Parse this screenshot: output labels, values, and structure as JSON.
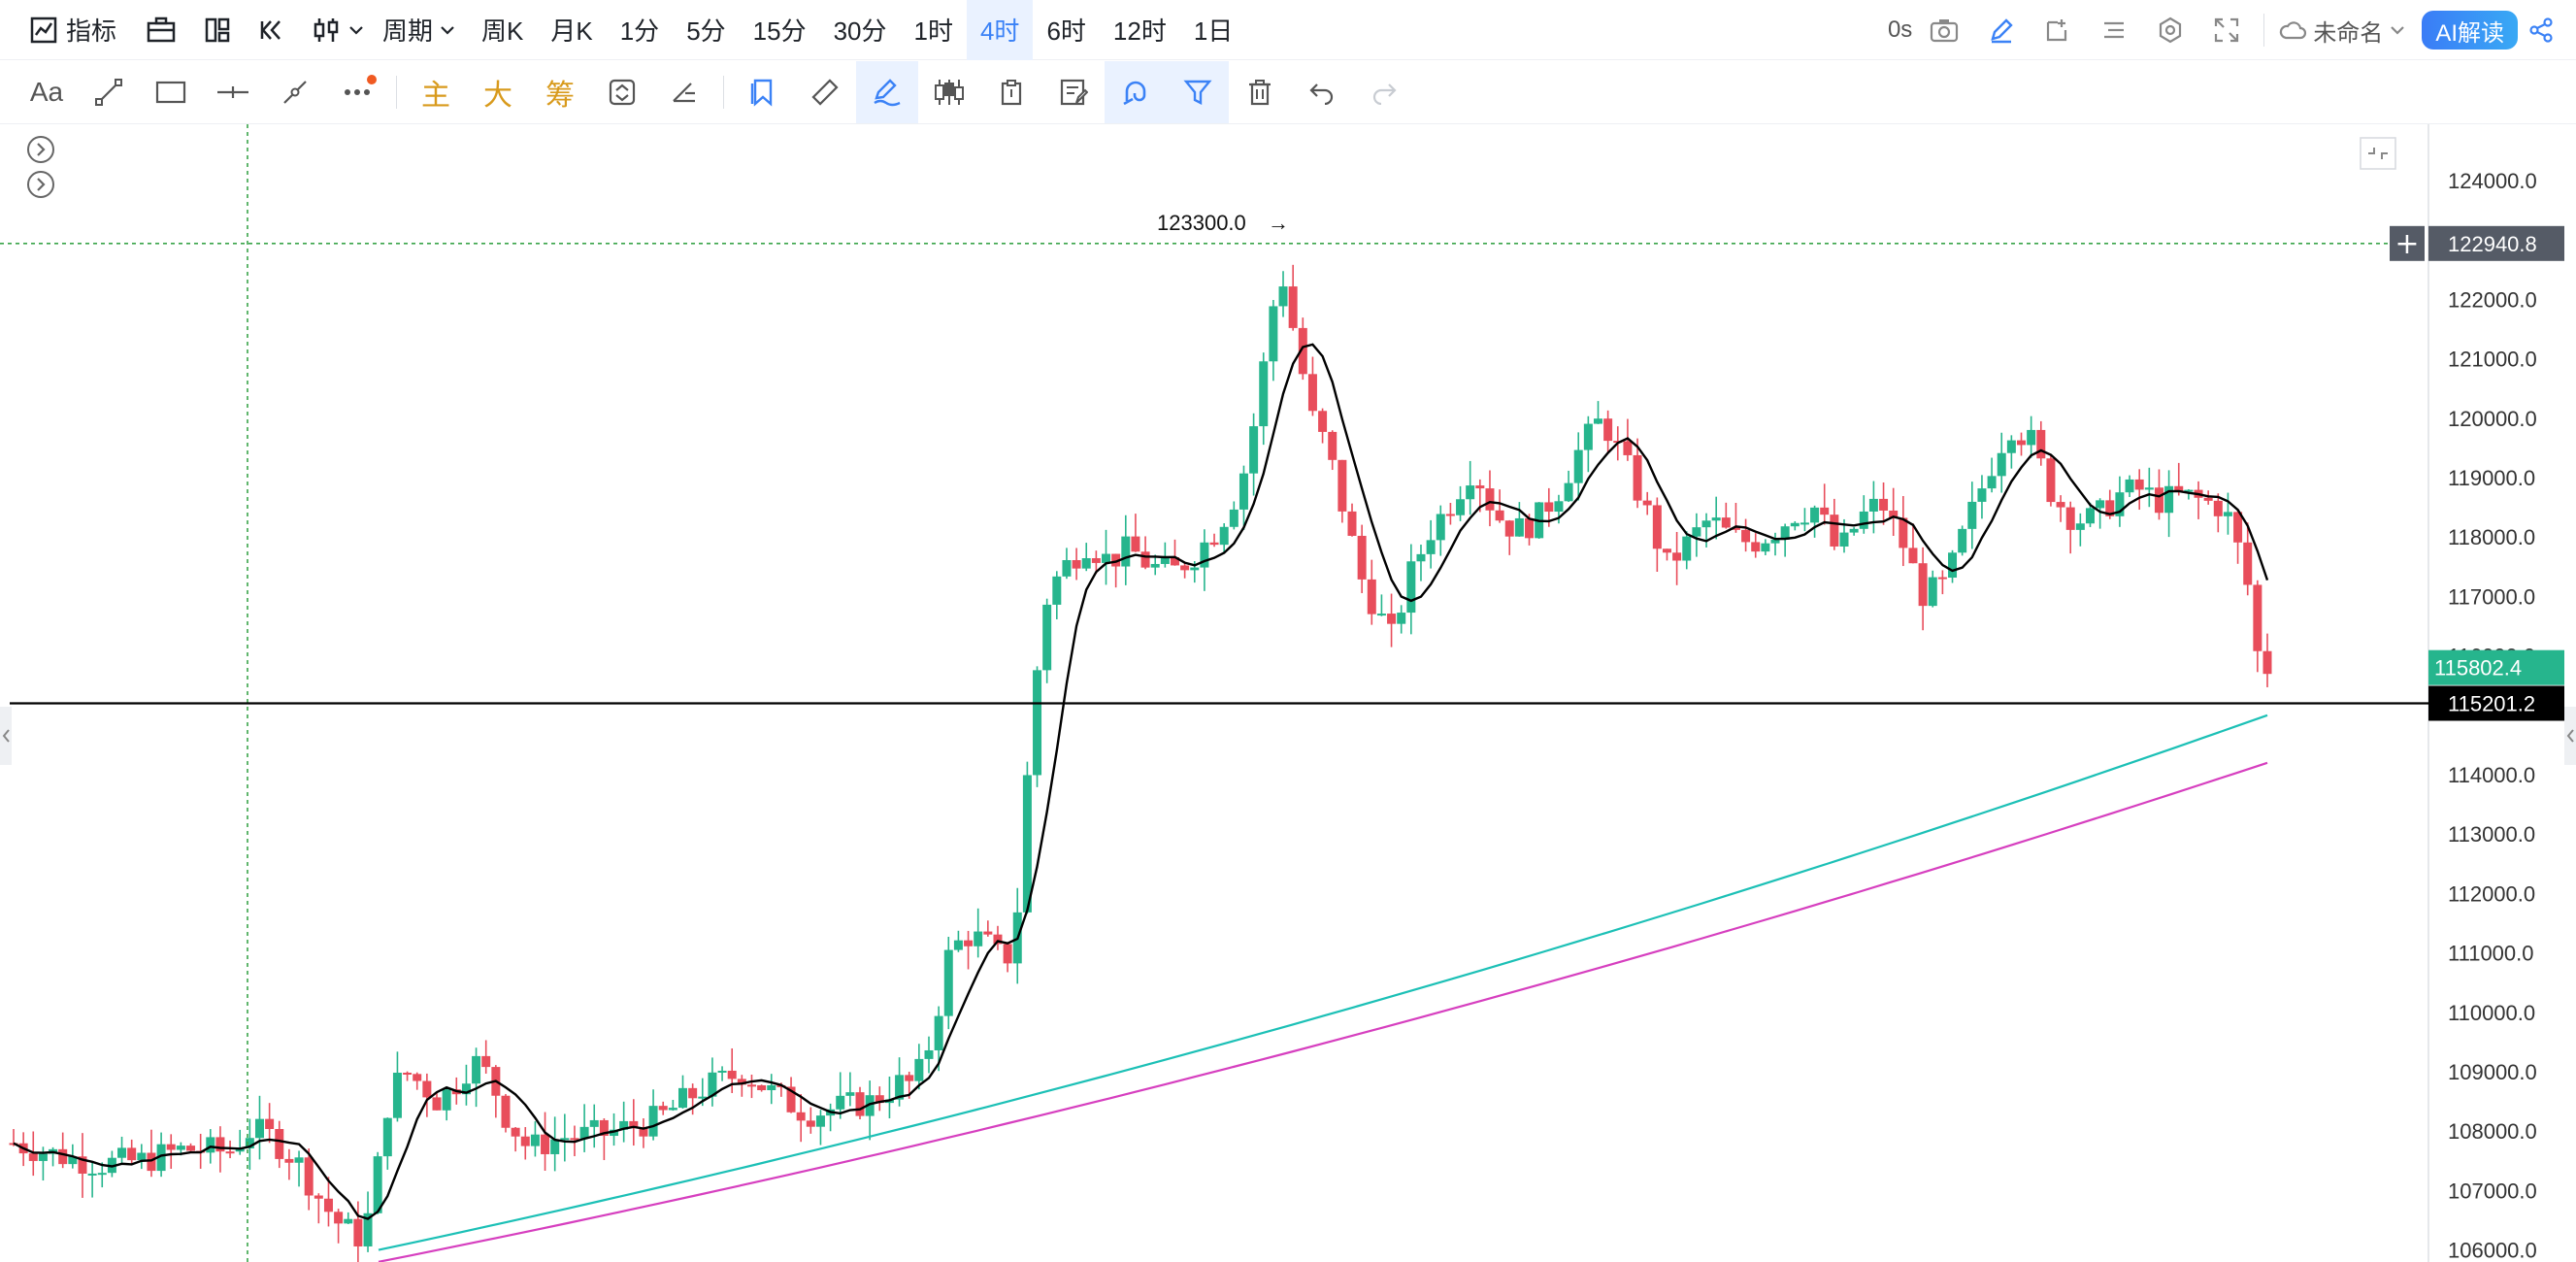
{
  "toolbar": {
    "indicator_label": "指标",
    "period_label": "周期",
    "periods": [
      "周K",
      "月K",
      "1分",
      "5分",
      "15分",
      "30分",
      "1时",
      "4时",
      "6时",
      "12时",
      "1日"
    ],
    "active_period": "4时",
    "countdown": "0s",
    "layout_name": "未命名",
    "ai_label": "AI解读"
  },
  "drawing_toolbar": {
    "text_tool": "Aa",
    "main_label": "主",
    "big_label": "大",
    "chip_label": "筹"
  },
  "chart": {
    "price_axis": [
      "124000.0",
      "122000.0",
      "121000.0",
      "120000.0",
      "119000.0",
      "118000.0",
      "117000.0",
      "116000.0",
      "114000.0",
      "113000.0",
      "112000.0",
      "111000.0",
      "110000.0",
      "109000.0",
      "108000.0",
      "107000.0",
      "106000.0"
    ],
    "high_marker": "123300.0",
    "crosshair_price": "122940.8",
    "last_price": "115802.4",
    "hline_price": "115201.2",
    "colors": {
      "up": "#26b58d",
      "down": "#e84d5b",
      "ma_short": "#000000",
      "ma_mid": "#1cc0b6",
      "ma_long": "#d63fbf",
      "crosshair": "#3aa54a"
    }
  }
}
